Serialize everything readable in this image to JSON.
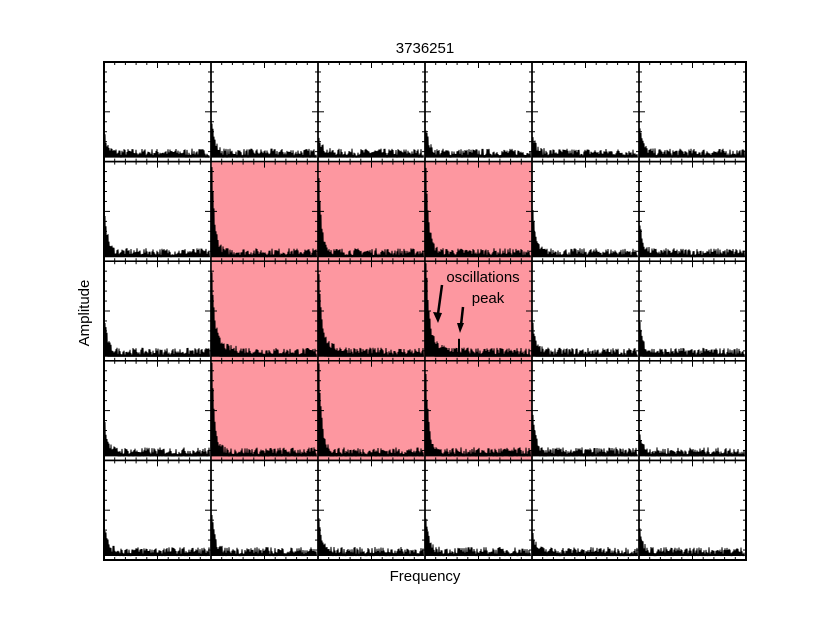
{
  "title": "3736251",
  "x_label": "Frequency",
  "y_label": "Amplitude",
  "annotation": {
    "line1": "oscillations",
    "line2": "peak"
  },
  "grid": {
    "rows": 5,
    "cols": 6,
    "highlight_color": "#fd97a0",
    "highlighted": [
      [
        1,
        1
      ],
      [
        1,
        2
      ],
      [
        1,
        3
      ],
      [
        2,
        1
      ],
      [
        2,
        2
      ],
      [
        2,
        3
      ],
      [
        3,
        1
      ],
      [
        3,
        2
      ],
      [
        3,
        3
      ]
    ]
  }
}
